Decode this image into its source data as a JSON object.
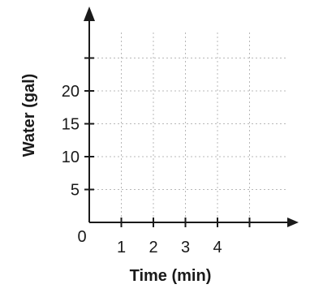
{
  "chart_data": {
    "type": "line",
    "title": "",
    "xlabel": "Time (min)",
    "ylabel": "Water (gal)",
    "origin_label": "0",
    "x_ticks": [
      1,
      2,
      3,
      4
    ],
    "x_tick_labels": [
      "1",
      "2",
      "3",
      "4"
    ],
    "y_ticks": [
      5,
      10,
      15,
      20
    ],
    "y_tick_labels": [
      "5",
      "10",
      "15",
      "20"
    ],
    "xlim": [
      0,
      6
    ],
    "ylim": [
      0,
      25
    ],
    "grid": true,
    "series": []
  },
  "colors": {
    "axis": "#1a1a1a",
    "grid": "#b8b8b8"
  }
}
